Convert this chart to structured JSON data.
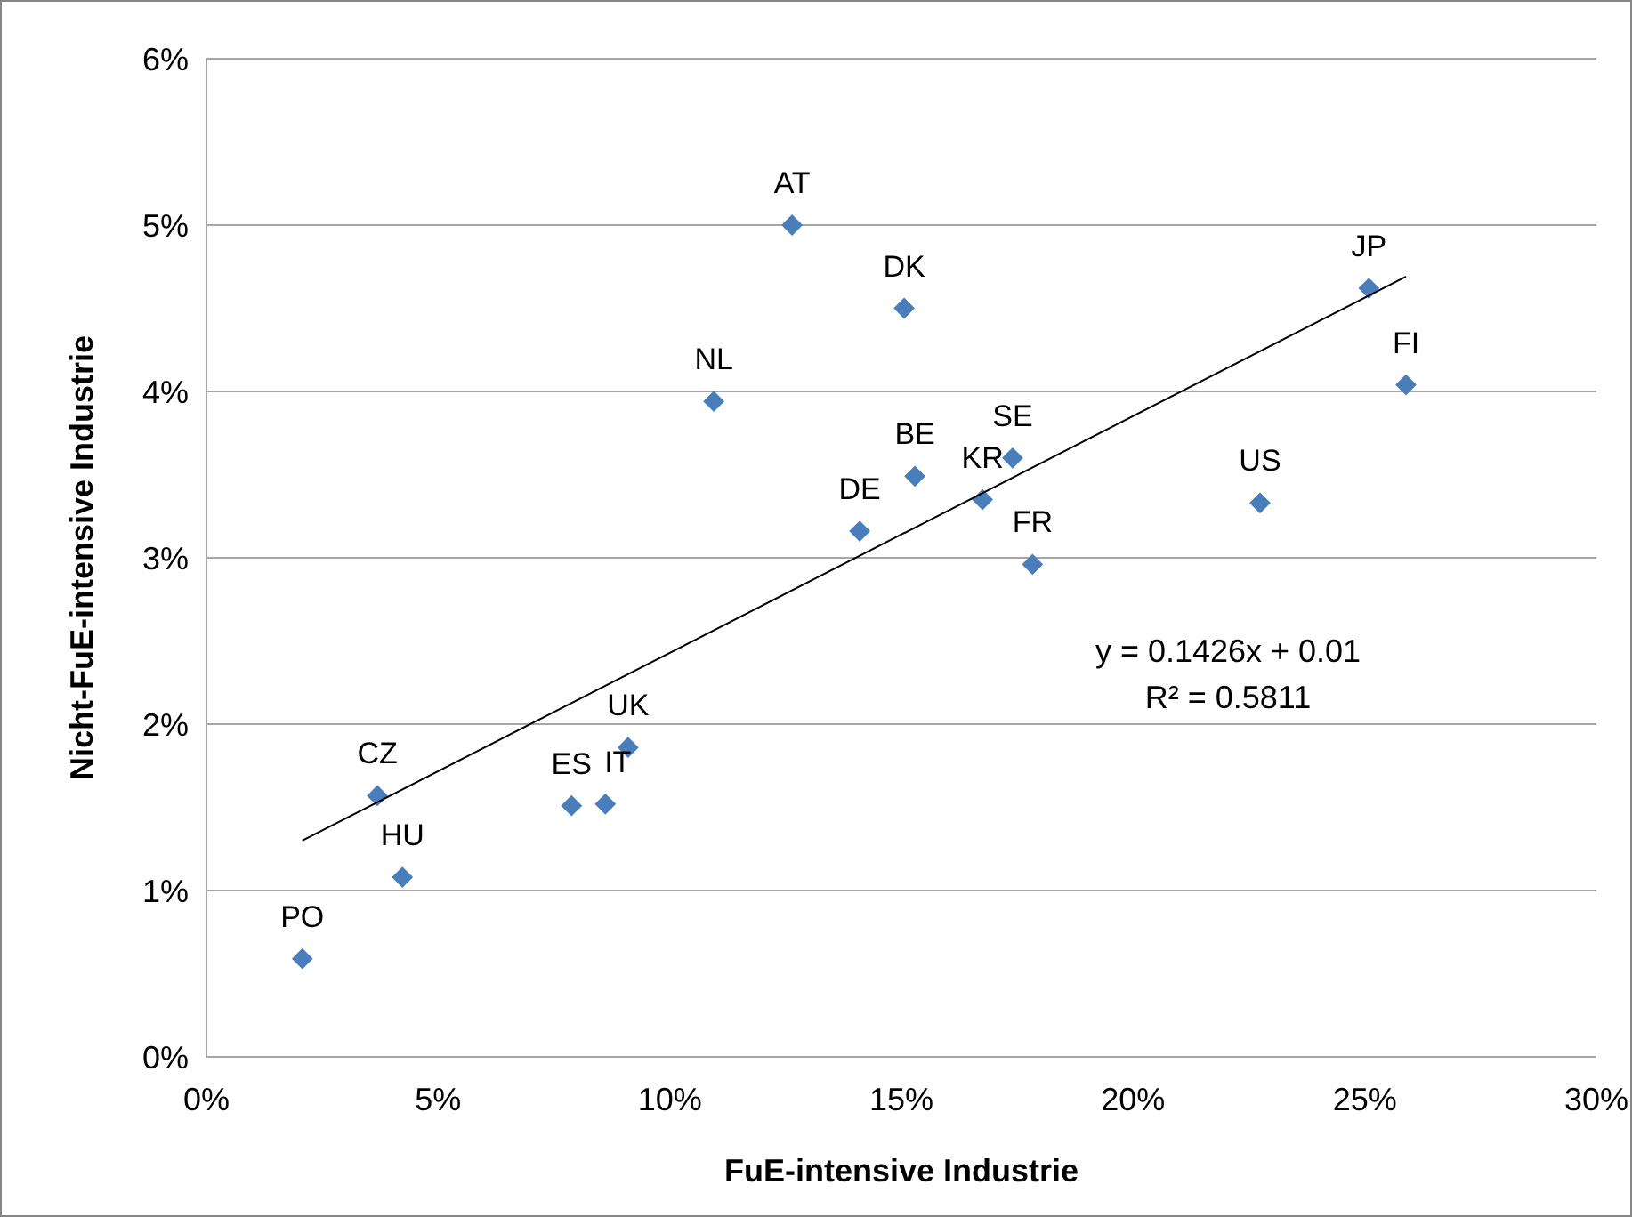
{
  "chart_data": {
    "type": "scatter",
    "xlabel": "FuE-intensive  Industrie",
    "ylabel": "Nicht-FuE-intensive Industrie",
    "xlim": [
      0,
      30
    ],
    "xticks": [
      {
        "value": 0,
        "label": "0%"
      },
      {
        "value": 5,
        "label": "5%"
      },
      {
        "value": 10,
        "label": "10%"
      },
      {
        "value": 15,
        "label": "15%"
      },
      {
        "value": 20,
        "label": "20%"
      },
      {
        "value": 25,
        "label": "25%"
      },
      {
        "value": 30,
        "label": "30%"
      }
    ],
    "ylim": [
      0,
      6
    ],
    "yticks": [
      {
        "value": 0,
        "label": "0%"
      },
      {
        "value": 1,
        "label": "1%"
      },
      {
        "value": 2,
        "label": "2%"
      },
      {
        "value": 3,
        "label": "3%"
      },
      {
        "value": 4,
        "label": "4%"
      },
      {
        "value": 5,
        "label": "5%"
      },
      {
        "value": 6,
        "label": "6%"
      }
    ],
    "grid": "y",
    "marker": "diamond",
    "series": [
      {
        "color": "#4a7ebb",
        "x": [
          12.64,
          15.06,
          10.95,
          25.09,
          25.89,
          17.4,
          15.29,
          16.75,
          22.74,
          14.1,
          17.83,
          9.1,
          3.69,
          7.88,
          8.61,
          4.23,
          2.07
        ],
        "values": [
          5.0,
          4.5,
          3.94,
          4.62,
          4.04,
          3.6,
          3.49,
          3.35,
          3.33,
          3.16,
          2.96,
          1.86,
          1.57,
          1.51,
          1.52,
          1.08,
          0.59
        ]
      },
      {
        "type": "line",
        "color": "#000000",
        "marker": "none",
        "x": [
          2.07,
          25.89
        ],
        "values": [
          1.3,
          4.69
        ]
      }
    ],
    "annotations": [
      {
        "text": "AT",
        "x": 12.64,
        "y": 5.0
      },
      {
        "text": "DK",
        "x": 15.06,
        "y": 4.5
      },
      {
        "text": "NL",
        "x": 10.95,
        "y": 3.94
      },
      {
        "text": "JP",
        "x": 25.09,
        "y": 4.62
      },
      {
        "text": "FI",
        "x": 25.89,
        "y": 4.04
      },
      {
        "text": "SE",
        "x": 17.4,
        "y": 3.6
      },
      {
        "text": "BE",
        "x": 15.29,
        "y": 3.49
      },
      {
        "text": "KR",
        "x": 16.75,
        "y": 3.35
      },
      {
        "text": "US",
        "x": 22.74,
        "y": 3.33
      },
      {
        "text": "DE",
        "x": 14.1,
        "y": 3.16
      },
      {
        "text": "FR",
        "x": 17.83,
        "y": 2.96
      },
      {
        "text": "UK",
        "x": 9.1,
        "y": 1.86
      },
      {
        "text": "CZ",
        "x": 3.69,
        "y": 1.57
      },
      {
        "text": "ES",
        "x": 7.88,
        "y": 1.51
      },
      {
        "text": "IT",
        "x": 8.61,
        "y": 1.52
      },
      {
        "text": "HU",
        "x": 4.23,
        "y": 1.08
      },
      {
        "text": "PO",
        "x": 2.07,
        "y": 0.59
      },
      "y = 0.1426x + 0.01",
      "R² = 0.5811"
    ]
  }
}
